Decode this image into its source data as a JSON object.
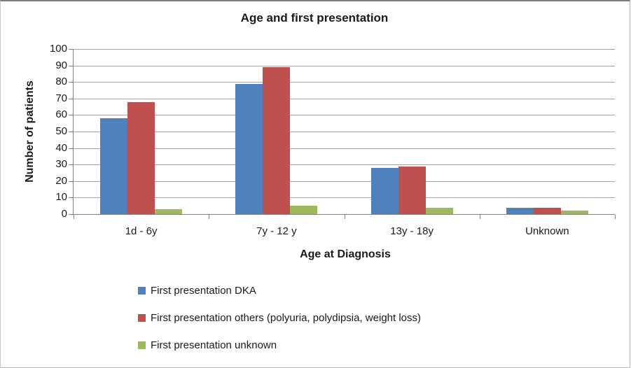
{
  "chart_data": {
    "type": "bar",
    "title": "Age and first presentation",
    "xlabel": "Age at Diagnosis",
    "ylabel": "Number of patients",
    "categories": [
      "1d - 6y",
      "7y - 12 y",
      "13y - 18y",
      "Unknown"
    ],
    "series": [
      {
        "name": "First presentation DKA",
        "color": "#4F81BD",
        "values": [
          58,
          79,
          28,
          4
        ]
      },
      {
        "name": "First presentation others (polyuria, polydipsia, weight loss)",
        "color": "#C0504D",
        "values": [
          68,
          89,
          29,
          4
        ]
      },
      {
        "name": "First presentation unknown",
        "color": "#9BBB59",
        "values": [
          3,
          5,
          4,
          2
        ]
      }
    ],
    "ylim": [
      0,
      100
    ],
    "ytick_step": 10,
    "grid": "horizontal",
    "legend_position": "bottom-left"
  },
  "style_colors": {
    "gridline": "#a3a3a3",
    "axis_line": "#808080",
    "text": "#1a1a1a"
  }
}
